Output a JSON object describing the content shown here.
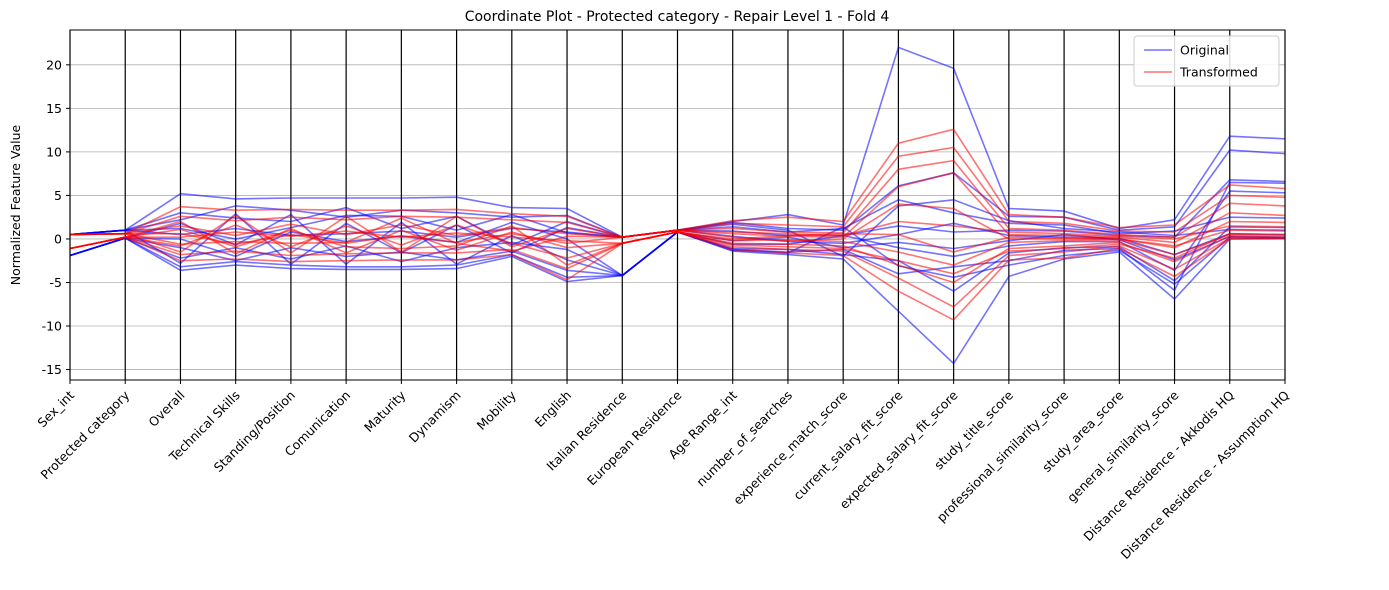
{
  "chart_data": {
    "type": "line",
    "title": "Coordinate Plot - Protected category - Repair Level 1 - Fold 4",
    "xlabel": "",
    "ylabel": "Normalized Feature Value",
    "ylim": [
      -16.2,
      24
    ],
    "yticks": [
      -15,
      -10,
      -5,
      0,
      5,
      10,
      15,
      20
    ],
    "grid": true,
    "legend_position": "top-right",
    "categories": [
      "Sex_int",
      "Protected category",
      "Overall",
      "Technical Skills",
      "Standing/Position",
      "Comunication",
      "Maturity",
      "Dynamism",
      "Mobility",
      "English",
      "Italian Residence",
      "European Residence",
      "Age Range_int",
      "number_of_searches",
      "experience_match_score",
      "current_salary_fit_score",
      "expected_salary_fit_score",
      "study_title_score",
      "professional_similarity_score",
      "study_area_score",
      "general_similarity_score",
      "Distance Residence - Akkodis HQ",
      "Distance Residence - Assumption HQ"
    ],
    "series": [
      {
        "name": "Original",
        "color": "#0000ff",
        "lines": [
          [
            0.5,
            1.0,
            5.2,
            4.6,
            4.7,
            4.7,
            4.7,
            4.8,
            3.6,
            3.5,
            0.2,
            1.0,
            2.0,
            2.8,
            1.6,
            22.0,
            19.6,
            3.5,
            3.2,
            1.2,
            2.2,
            11.8,
            11.5
          ],
          [
            -1.9,
            0.1,
            -3.6,
            -3.0,
            -3.4,
            -3.5,
            -3.5,
            -3.4,
            -2.0,
            -4.9,
            -4.2,
            0.8,
            -1.4,
            -1.8,
            -2.3,
            -8.3,
            -14.3,
            -4.3,
            -2.3,
            -1.5,
            -6.9,
            0.0,
            0.1
          ],
          [
            0.5,
            1.0,
            2.2,
            3.8,
            3.3,
            2.5,
            3.3,
            3.0,
            2.5,
            2.7,
            0.2,
            1.0,
            1.9,
            1.2,
            1.0,
            6.1,
            7.6,
            2.6,
            2.5,
            1.0,
            1.4,
            10.2,
            9.8
          ],
          [
            -1.9,
            0.1,
            -1.0,
            -2.5,
            -1.0,
            -2.0,
            -1.5,
            -2.4,
            -1.4,
            -3.6,
            -4.2,
            0.8,
            -1.2,
            -1.5,
            -1.2,
            -4.0,
            -3.2,
            -2.5,
            -1.3,
            -1.1,
            -5.9,
            6.5,
            6.4
          ],
          [
            0.5,
            1.0,
            0.5,
            1.2,
            0.4,
            0.6,
            0.9,
            0.2,
            1.2,
            0.8,
            0.2,
            1.0,
            0.9,
            0.4,
            0.4,
            1.5,
            0.8,
            1.0,
            0.9,
            0.4,
            0.2,
            6.8,
            6.6
          ],
          [
            -1.9,
            0.1,
            -2.2,
            -1.0,
            -2.3,
            -0.8,
            -2.6,
            -1.0,
            -0.4,
            -1.2,
            -4.2,
            0.8,
            -0.6,
            -0.6,
            0.4,
            -1.0,
            -2.0,
            -0.8,
            -0.3,
            -0.3,
            -3.6,
            5.5,
            5.3
          ],
          [
            0.5,
            1.0,
            3.0,
            2.4,
            2.0,
            3.6,
            1.2,
            2.6,
            -0.7,
            2.0,
            0.2,
            1.0,
            1.4,
            0.8,
            1.2,
            4.5,
            3.0,
            1.8,
            1.6,
            0.6,
            0.9,
            2.5,
            2.4
          ],
          [
            -1.9,
            0.1,
            1.8,
            -0.7,
            2.8,
            -2.9,
            1.9,
            -2.9,
            0.4,
            -2.4,
            -4.2,
            0.8,
            -1.1,
            -1.2,
            -1.8,
            -2.5,
            -6.0,
            -1.6,
            -1.0,
            -0.9,
            -4.8,
            1.4,
            1.3
          ],
          [
            0.5,
            1.0,
            -2.8,
            2.9,
            -2.9,
            1.8,
            -1.6,
            1.6,
            -1.6,
            1.3,
            0.2,
            1.0,
            0.3,
            -0.3,
            -0.5,
            0.5,
            1.8,
            0.4,
            0.2,
            0.1,
            -1.8,
            0.6,
            0.5
          ],
          [
            -1.9,
            0.1,
            0.0,
            -2.0,
            0.8,
            -0.3,
            0.3,
            -0.4,
            1.9,
            0.0,
            -4.2,
            0.8,
            -0.2,
            0.2,
            -1.0,
            -0.4,
            -1.1,
            -0.2,
            0.5,
            -0.1,
            -2.4,
            0.3,
            0.2
          ],
          [
            0.5,
            1.0,
            1.2,
            0.0,
            1.3,
            2.7,
            2.6,
            1.0,
            2.8,
            0.7,
            0.2,
            1.0,
            1.7,
            1.0,
            -2.0,
            3.8,
            4.5,
            2.1,
            1.2,
            0.8,
            0.4,
            1.1,
            1.0
          ],
          [
            -1.9,
            0.1,
            -3.2,
            -2.6,
            -3.0,
            -3.2,
            -3.2,
            -3.0,
            -1.8,
            -4.4,
            -4.2,
            0.8,
            -1.3,
            -1.6,
            1.4,
            -3.1,
            -4.4,
            -3.0,
            -1.9,
            -1.3,
            -5.2,
            0.2,
            0.1
          ]
        ]
      },
      {
        "name": "Transformed",
        "color": "#ff0000",
        "lines": [
          [
            0.5,
            0.6,
            3.7,
            3.3,
            3.4,
            3.3,
            3.3,
            3.4,
            2.9,
            2.6,
            0.2,
            1.0,
            2.1,
            2.5,
            2.0,
            11.0,
            12.6,
            2.8,
            2.5,
            1.3,
            1.6,
            6.2,
            5.8
          ],
          [
            -1.1,
            0.2,
            -2.5,
            -2.3,
            -2.6,
            -2.5,
            -2.4,
            -2.4,
            -1.8,
            -4.7,
            -0.5,
            0.8,
            -1.2,
            -1.6,
            -1.9,
            -6.0,
            -9.3,
            -2.4,
            -2.2,
            -1.1,
            -4.3,
            0.0,
            0.0
          ],
          [
            0.5,
            0.6,
            2.6,
            2.1,
            2.5,
            2.2,
            2.6,
            2.5,
            2.2,
            1.9,
            0.2,
            1.0,
            1.8,
            1.6,
            1.4,
            9.5,
            10.5,
            2.0,
            1.8,
            0.9,
            0.8,
            5.0,
            4.8
          ],
          [
            -1.1,
            0.2,
            -1.8,
            -1.4,
            -1.9,
            -1.7,
            -1.6,
            -1.6,
            -1.2,
            -3.4,
            -0.5,
            0.8,
            -0.9,
            -1.2,
            -1.4,
            -4.5,
            -7.8,
            -1.9,
            -1.5,
            -0.8,
            -3.5,
            0.1,
            0.1
          ],
          [
            0.5,
            0.6,
            1.5,
            0.4,
            1.7,
            0.5,
            1.6,
            0.4,
            1.3,
            0.6,
            0.2,
            1.0,
            1.2,
            0.8,
            0.7,
            8.0,
            9.0,
            1.2,
            1.0,
            0.5,
            0.2,
            4.1,
            3.8
          ],
          [
            -1.1,
            0.2,
            -0.8,
            1.6,
            -0.9,
            1.5,
            -0.7,
            1.6,
            -0.5,
            -2.2,
            -0.5,
            0.8,
            -0.5,
            -0.6,
            -0.8,
            -3.0,
            -5.0,
            -1.1,
            -0.8,
            -0.4,
            -2.6,
            0.3,
            0.2
          ],
          [
            0.5,
            0.6,
            0.6,
            -0.6,
            0.5,
            -0.5,
            0.4,
            -0.4,
            0.6,
            -0.5,
            0.2,
            1.0,
            0.6,
            0.3,
            0.2,
            6.0,
            7.6,
            0.5,
            0.4,
            0.2,
            -0.4,
            3.0,
            2.7
          ],
          [
            -1.1,
            0.2,
            2.0,
            -1.7,
            1.2,
            -1.6,
            1.0,
            -1.3,
            0.8,
            -1.0,
            -0.5,
            0.8,
            -0.2,
            -0.1,
            -0.3,
            -1.5,
            -3.0,
            -0.4,
            -0.2,
            -0.1,
            -1.8,
            0.5,
            0.4
          ],
          [
            0.5,
            0.6,
            -1.5,
            2.7,
            -1.6,
            2.6,
            -1.5,
            2.6,
            -0.9,
            1.2,
            0.2,
            1.0,
            0.2,
            -0.2,
            0.0,
            4.0,
            3.5,
            0.0,
            0.0,
            0.0,
            -1.0,
            2.0,
            1.9
          ],
          [
            -1.1,
            0.2,
            0.2,
            0.8,
            0.3,
            0.9,
            0.2,
            0.7,
            0.2,
            -0.2,
            -0.5,
            0.8,
            0.0,
            0.4,
            0.6,
            0.5,
            -1.5,
            0.2,
            0.1,
            0.0,
            -0.8,
            1.0,
            0.9
          ],
          [
            0.5,
            0.6,
            -0.6,
            -0.3,
            -0.5,
            -0.4,
            2.4,
            -0.5,
            -1.4,
            0.3,
            0.2,
            1.0,
            0.8,
            0.6,
            0.4,
            2.0,
            1.5,
            0.8,
            0.6,
            0.3,
            0.0,
            1.5,
            1.4
          ],
          [
            -1.1,
            0.2,
            1.1,
            -0.9,
            1.0,
            -0.9,
            -1.1,
            -0.8,
            1.5,
            -3.0,
            -0.5,
            0.8,
            -0.7,
            -0.9,
            -1.1,
            -2.5,
            -4.0,
            -1.4,
            -1.1,
            -0.6,
            -2.2,
            0.6,
            0.5
          ]
        ]
      }
    ]
  }
}
